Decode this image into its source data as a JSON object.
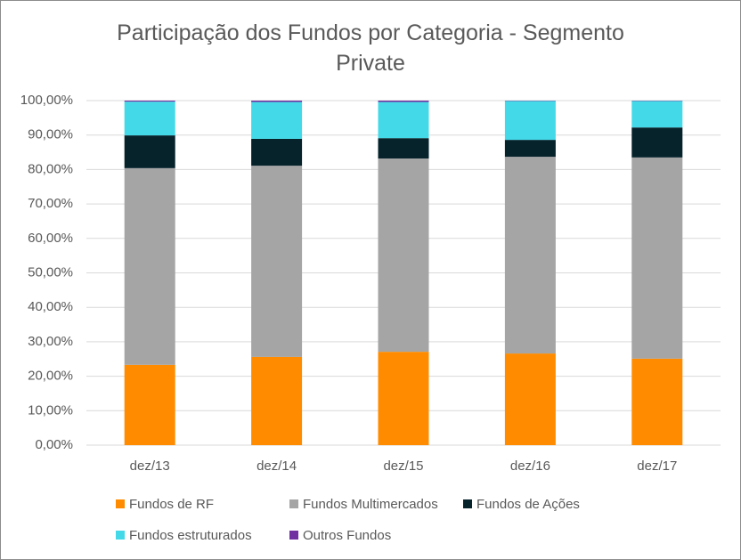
{
  "chart_data": {
    "type": "stacked-bar",
    "title": "Participação dos Fundos por Categoria - Segmento Private",
    "categories": [
      "dez/13",
      "dez/14",
      "dez/15",
      "dez/16",
      "dez/17"
    ],
    "series": [
      {
        "name": "Fundos de RF",
        "color": "#ff8c00",
        "values": [
          23.3,
          25.6,
          27.1,
          26.6,
          25.1
        ]
      },
      {
        "name": "Fundos Multimercados",
        "color": "#a5a5a5",
        "values": [
          57.1,
          55.5,
          56.1,
          57.1,
          58.4
        ]
      },
      {
        "name": "Fundos de Ações",
        "color": "#06232c",
        "values": [
          9.5,
          7.8,
          5.9,
          4.9,
          8.7
        ]
      },
      {
        "name": "Fundos estruturados",
        "color": "#44d9e8",
        "values": [
          9.8,
          10.7,
          10.5,
          11.3,
          7.7
        ]
      },
      {
        "name": "Outros Fundos",
        "color": "#7030a0",
        "values": [
          0.3,
          0.4,
          0.4,
          0.1,
          0.1
        ]
      }
    ],
    "ylim": [
      0,
      100
    ],
    "yticks": [
      {
        "value": 0,
        "label": "0,00%"
      },
      {
        "value": 10,
        "label": "10,00%"
      },
      {
        "value": 20,
        "label": "20,00%"
      },
      {
        "value": 30,
        "label": "30,00%"
      },
      {
        "value": 40,
        "label": "40,00%"
      },
      {
        "value": 50,
        "label": "50,00%"
      },
      {
        "value": 60,
        "label": "60,00%"
      },
      {
        "value": 70,
        "label": "70,00%"
      },
      {
        "value": 80,
        "label": "80,00%"
      },
      {
        "value": 90,
        "label": "90,00%"
      },
      {
        "value": 100,
        "label": "100,00%"
      }
    ],
    "grid": true,
    "legend": "bottom"
  }
}
